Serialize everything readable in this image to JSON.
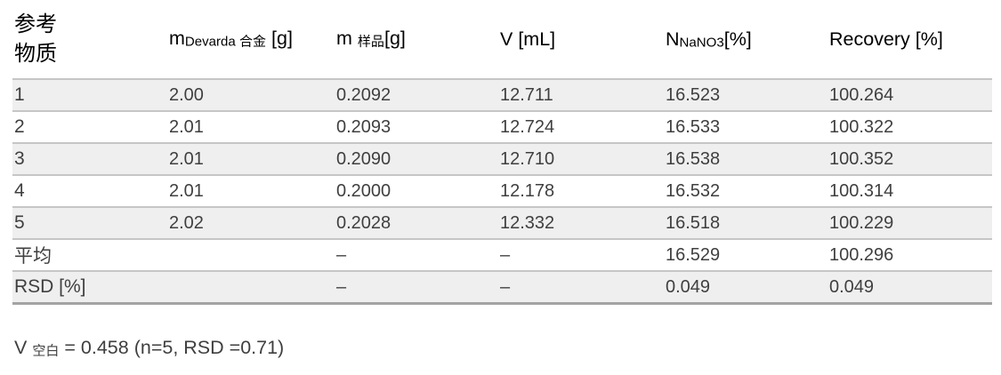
{
  "colors": {
    "stripe": "#efefef",
    "row_border": "#c6c6c6",
    "bottom_border": "#a3a3a3",
    "body_text": "#3f3f3f",
    "header_text": "#000000",
    "background": "#ffffff"
  },
  "table": {
    "column_headers": [
      {
        "segments": [
          {
            "text": "参考"
          },
          {
            "break": true
          },
          {
            "text": "物质"
          }
        ]
      },
      {
        "segments": [
          {
            "text": "m"
          },
          {
            "text": "Devarda 合金",
            "sub": true
          },
          {
            "text": " [g]"
          }
        ]
      },
      {
        "segments": [
          {
            "text": "m "
          },
          {
            "text": "样品",
            "sub": true
          },
          {
            "text": "[g]"
          }
        ]
      },
      {
        "segments": [
          {
            "text": "V [mL]"
          }
        ]
      },
      {
        "segments": [
          {
            "text": "N"
          },
          {
            "text": "NaNO3",
            "sub": true
          },
          {
            "text": "[%]"
          }
        ]
      },
      {
        "segments": [
          {
            "text": "Recovery [%]"
          }
        ]
      }
    ],
    "rows": [
      {
        "cells": [
          "1",
          "2.00",
          "0.2092",
          "12.711",
          "16.523",
          "100.264"
        ]
      },
      {
        "cells": [
          "2",
          "2.01",
          "0.2093",
          "12.724",
          "16.533",
          "100.322"
        ]
      },
      {
        "cells": [
          "3",
          "2.01",
          "0.2090",
          "12.710",
          "16.538",
          "100.352"
        ]
      },
      {
        "cells": [
          "4",
          "2.01",
          "0.2000",
          "12.178",
          "16.532",
          "100.314"
        ]
      },
      {
        "cells": [
          "5",
          "2.02",
          "0.2028",
          "12.332",
          "16.518",
          "100.229"
        ]
      },
      {
        "cells": [
          "平均",
          "",
          "–",
          "–",
          "16.529",
          "100.296"
        ]
      },
      {
        "cells": [
          "RSD [%]",
          "",
          "–",
          "–",
          "0.049",
          "0.049"
        ]
      }
    ]
  },
  "footnote": {
    "segments": [
      {
        "text": "V "
      },
      {
        "text": "空白",
        "sub": true
      },
      {
        "text": " = 0.458 (n=5, RSD =0.71)"
      }
    ]
  }
}
